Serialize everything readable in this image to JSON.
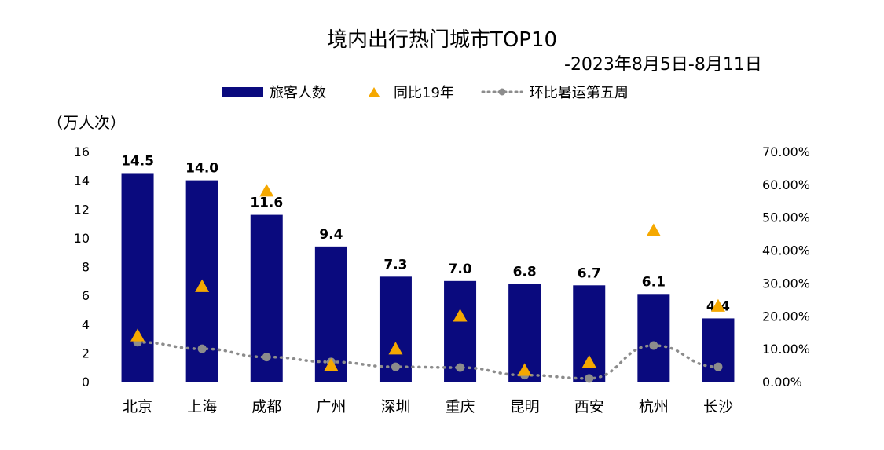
{
  "title": "境内出行热门城市TOP10",
  "subtitle": "-2023年8月5日-8月11日",
  "left_axis_unit": "（万人次）",
  "legend": {
    "bar_label": "旅客人数",
    "triangle_label": "同比19年",
    "dot_label": "环比暑运第五周"
  },
  "colors": {
    "bar": "#0a0a7e",
    "triangle": "#f5a800",
    "dot_line": "#8c8c8c"
  },
  "chart_data": {
    "type": "bar",
    "categories": [
      "北京",
      "上海",
      "成都",
      "广州",
      "深圳",
      "重庆",
      "昆明",
      "西安",
      "杭州",
      "长沙"
    ],
    "series": [
      {
        "name": "旅客人数",
        "type": "bar",
        "axis": "left",
        "values": [
          14.5,
          14.0,
          11.6,
          9.4,
          7.3,
          7.0,
          6.8,
          6.7,
          6.1,
          4.4
        ],
        "data_labels": [
          "14.5",
          "14.0",
          "11.6",
          "9.4",
          "7.3",
          "7.0",
          "6.8",
          "6.7",
          "6.1",
          "4.4"
        ]
      },
      {
        "name": "同比19年",
        "type": "scatter",
        "marker": "triangle",
        "axis": "right",
        "values": [
          0.14,
          0.29,
          0.58,
          0.05,
          0.1,
          0.2,
          0.035,
          0.06,
          0.46,
          0.23
        ]
      },
      {
        "name": "环比暑运第五周",
        "type": "line",
        "style": "dotted",
        "marker": "circle",
        "axis": "right",
        "values": [
          0.12,
          0.1,
          0.075,
          0.06,
          0.045,
          0.043,
          0.02,
          0.01,
          0.11,
          0.045
        ]
      }
    ],
    "y_left": {
      "min": 0,
      "max": 16,
      "ticks": [
        "0",
        "2",
        "4",
        "6",
        "8",
        "10",
        "12",
        "14",
        "16"
      ]
    },
    "y_right": {
      "min": 0,
      "max": 0.7,
      "ticks": [
        "0.00%",
        "10.00%",
        "20.00%",
        "30.00%",
        "40.00%",
        "50.00%",
        "60.00%",
        "70.00%"
      ]
    },
    "grid": false,
    "legend_position": "top"
  }
}
